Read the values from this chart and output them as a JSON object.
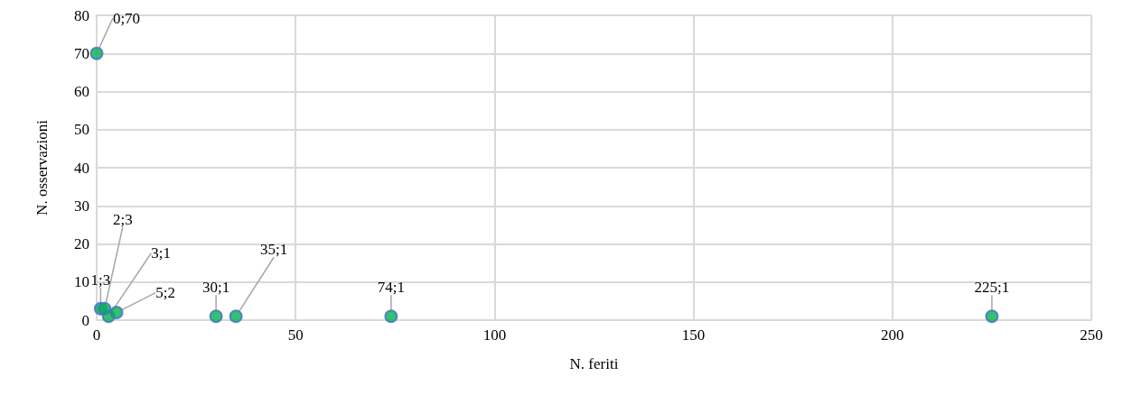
{
  "chart_data": {
    "type": "scatter",
    "xlabel": "N. feriti",
    "ylabel": "N. osservazioni",
    "x": [
      0,
      1,
      2,
      3,
      5,
      30,
      35,
      74,
      225
    ],
    "values": [
      70,
      3,
      3,
      1,
      2,
      1,
      1,
      1,
      1
    ],
    "value_labels": [
      "0;70",
      "1;3",
      "2;3",
      "3;1",
      "5;2",
      "30;1",
      "35;1",
      "74;1",
      "225;1"
    ],
    "color": "#00b050",
    "xlim": [
      0,
      250
    ],
    "xticks": [
      0,
      50,
      100,
      150,
      200,
      250
    ],
    "ylim": [
      0,
      80
    ],
    "yticks": [
      0,
      10,
      20,
      30,
      40,
      50,
      60,
      70,
      80
    ],
    "grid": true,
    "marker": "circle"
  }
}
